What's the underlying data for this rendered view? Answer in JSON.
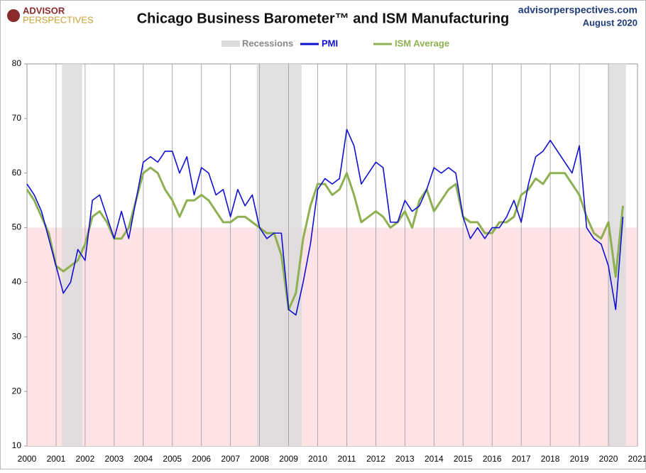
{
  "chart_data": {
    "type": "line",
    "logo": [
      "ADVISOR",
      "PERSPECTIVES"
    ],
    "title": "Chicago Business Barometer™ and ISM Manufacturing",
    "source": "advisorperspectives.com",
    "date": "August 2020",
    "recessions": {
      "name": "Recessions",
      "color": "#dcdcdc",
      "spans": [
        [
          2001.2,
          2001.9
        ],
        [
          2007.9,
          2009.45
        ],
        [
          2020.0,
          2020.6
        ]
      ]
    },
    "shade_below": 50,
    "shade_color": "#fde3e6",
    "x": [
      2000.0,
      2000.25,
      2000.5,
      2000.75,
      2001.0,
      2001.25,
      2001.5,
      2001.75,
      2002.0,
      2002.25,
      2002.5,
      2002.75,
      2003.0,
      2003.25,
      2003.5,
      2003.75,
      2004.0,
      2004.25,
      2004.5,
      2004.75,
      2005.0,
      2005.25,
      2005.5,
      2005.75,
      2006.0,
      2006.25,
      2006.5,
      2006.75,
      2007.0,
      2007.25,
      2007.5,
      2007.75,
      2008.0,
      2008.25,
      2008.5,
      2008.75,
      2009.0,
      2009.25,
      2009.5,
      2009.75,
      2010.0,
      2010.25,
      2010.5,
      2010.75,
      2011.0,
      2011.25,
      2011.5,
      2011.75,
      2012.0,
      2012.25,
      2012.5,
      2012.75,
      2013.0,
      2013.25,
      2013.5,
      2013.75,
      2014.0,
      2014.25,
      2014.5,
      2014.75,
      2015.0,
      2015.25,
      2015.5,
      2015.75,
      2016.0,
      2016.25,
      2016.5,
      2016.75,
      2017.0,
      2017.25,
      2017.5,
      2017.75,
      2018.0,
      2018.25,
      2018.5,
      2018.75,
      2019.0,
      2019.25,
      2019.5,
      2019.75,
      2020.0,
      2020.25,
      2020.5
    ],
    "series": [
      {
        "name": "PMI",
        "color": "#1010d0",
        "values": [
          58,
          56,
          53,
          48,
          43,
          38,
          40,
          46,
          44,
          55,
          56,
          52,
          48,
          53,
          48,
          55,
          62,
          63,
          62,
          64,
          64,
          60,
          63,
          56,
          61,
          60,
          56,
          57,
          52,
          57,
          54,
          56,
          50,
          48,
          49,
          49,
          35,
          34,
          40,
          47,
          57,
          59,
          58,
          59,
          68,
          65,
          58,
          60,
          62,
          61,
          51,
          51,
          55,
          53,
          54,
          57,
          61,
          60,
          61,
          60,
          52,
          48,
          50,
          48,
          50,
          50,
          52,
          55,
          51,
          58,
          63,
          64,
          66,
          64,
          62,
          60,
          65,
          50,
          48,
          47,
          43,
          35,
          52
        ]
      },
      {
        "name": "ISM Average",
        "color": "#8db050",
        "values": [
          57,
          55,
          52,
          49,
          43,
          42,
          43,
          44,
          47,
          52,
          53,
          51,
          48,
          48,
          50,
          55,
          60,
          61,
          60,
          57,
          55,
          52,
          55,
          55,
          56,
          55,
          53,
          51,
          51,
          52,
          52,
          51,
          50,
          49,
          49,
          45,
          35,
          38,
          48,
          54,
          58,
          58,
          56,
          57,
          60,
          56,
          51,
          52,
          53,
          52,
          50,
          51,
          53,
          50,
          55,
          57,
          53,
          55,
          57,
          58,
          52,
          51,
          51,
          49,
          49,
          51,
          51,
          52,
          56,
          57,
          59,
          58,
          60,
          60,
          60,
          58,
          56,
          52,
          49,
          48,
          51,
          41,
          54
        ]
      }
    ],
    "xlim": [
      2000,
      2021
    ],
    "xticks": [
      2000,
      2001,
      2002,
      2003,
      2004,
      2005,
      2006,
      2007,
      2008,
      2009,
      2010,
      2011,
      2012,
      2013,
      2014,
      2015,
      2016,
      2017,
      2018,
      2019,
      2020,
      2021
    ],
    "ylim": [
      10,
      80
    ],
    "yticks": [
      10,
      20,
      30,
      40,
      50,
      60,
      70,
      80
    ],
    "grid": "x"
  }
}
